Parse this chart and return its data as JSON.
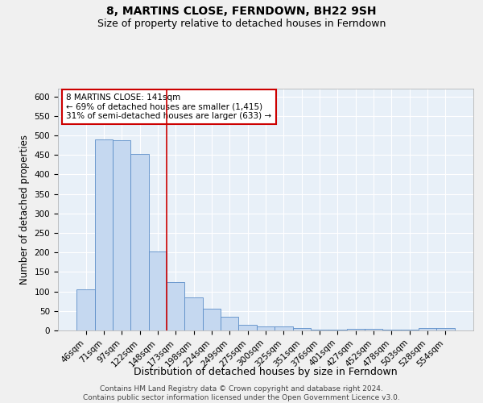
{
  "title": "8, MARTINS CLOSE, FERNDOWN, BH22 9SH",
  "subtitle": "Size of property relative to detached houses in Ferndown",
  "xlabel": "Distribution of detached houses by size in Ferndown",
  "ylabel": "Number of detached properties",
  "categories": [
    "46sqm",
    "71sqm",
    "97sqm",
    "122sqm",
    "148sqm",
    "173sqm",
    "198sqm",
    "224sqm",
    "249sqm",
    "275sqm",
    "300sqm",
    "325sqm",
    "351sqm",
    "376sqm",
    "401sqm",
    "427sqm",
    "452sqm",
    "478sqm",
    "503sqm",
    "528sqm",
    "554sqm"
  ],
  "values": [
    105,
    490,
    487,
    452,
    202,
    124,
    84,
    56,
    36,
    15,
    10,
    10,
    7,
    2,
    2,
    5,
    5,
    2,
    2,
    6,
    6
  ],
  "bar_color": "#c5d8f0",
  "bar_edge_color": "#5b8dc8",
  "bg_color": "#e8f0f8",
  "grid_color": "#ffffff",
  "vline_x": 4.5,
  "vline_color": "#cc0000",
  "annotation_text": "8 MARTINS CLOSE: 141sqm\n← 69% of detached houses are smaller (1,415)\n31% of semi-detached houses are larger (633) →",
  "annotation_box_color": "#ffffff",
  "annotation_box_edge": "#cc0000",
  "footer": "Contains HM Land Registry data © Crown copyright and database right 2024.\nContains public sector information licensed under the Open Government Licence v3.0.",
  "ylim": [
    0,
    620
  ],
  "yticks": [
    0,
    50,
    100,
    150,
    200,
    250,
    300,
    350,
    400,
    450,
    500,
    550,
    600
  ],
  "title_fontsize": 10,
  "subtitle_fontsize": 9,
  "xlabel_fontsize": 9,
  "ylabel_fontsize": 8.5,
  "tick_fontsize": 7.5,
  "annotation_fontsize": 7.5,
  "footer_fontsize": 6.5
}
